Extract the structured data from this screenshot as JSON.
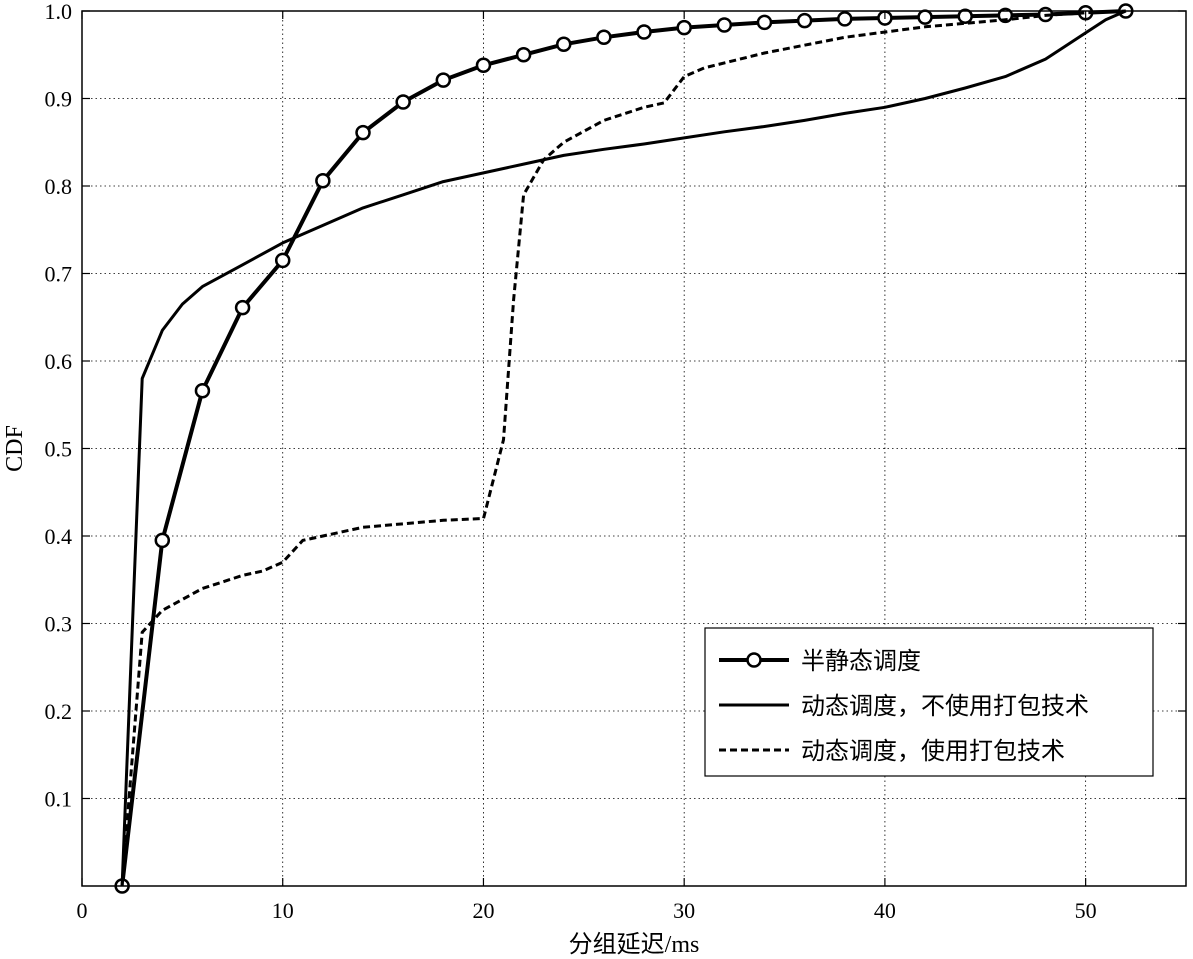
{
  "chart_data": {
    "type": "line",
    "title": "",
    "xlabel": "分组延迟/ms",
    "ylabel": "CDF",
    "xlim": [
      0,
      55
    ],
    "ylim": [
      0,
      1.0
    ],
    "xticks": [
      0,
      10,
      20,
      30,
      40,
      50
    ],
    "yticks": [
      0.1,
      0.2,
      0.3,
      0.4,
      0.5,
      0.6,
      0.7,
      0.8,
      0.9,
      1.0
    ],
    "xtick_labels": [
      "0",
      "10",
      "20",
      "30",
      "40",
      "50"
    ],
    "ytick_labels": [
      "0.1",
      "0.2",
      "0.3",
      "0.4",
      "0.5",
      "0.6",
      "0.7",
      "0.8",
      "0.9",
      "1.0"
    ],
    "grid": true,
    "legend_position": "bottom-right",
    "series": [
      {
        "name": "半静态调度",
        "style": "solid-circle-markers",
        "color": "#000000",
        "x": [
          2,
          4,
          6,
          8,
          10,
          12,
          14,
          16,
          18,
          20,
          22,
          24,
          26,
          28,
          30,
          32,
          34,
          36,
          38,
          40,
          42,
          44,
          46,
          48,
          50,
          52
        ],
        "y": [
          0.0,
          0.395,
          0.566,
          0.661,
          0.715,
          0.806,
          0.861,
          0.896,
          0.921,
          0.938,
          0.95,
          0.962,
          0.97,
          0.976,
          0.981,
          0.984,
          0.987,
          0.989,
          0.991,
          0.992,
          0.993,
          0.994,
          0.995,
          0.996,
          0.998,
          1.0
        ]
      },
      {
        "name": "动态调度，不使用打包技术",
        "style": "solid",
        "color": "#000000",
        "x": [
          2,
          3,
          4,
          5,
          6,
          8,
          10,
          12,
          14,
          16,
          18,
          20,
          22,
          24,
          26,
          28,
          30,
          32,
          34,
          36,
          38,
          40,
          42,
          44,
          46,
          48,
          49,
          50,
          51,
          52
        ],
        "y": [
          0.0,
          0.58,
          0.635,
          0.665,
          0.685,
          0.71,
          0.735,
          0.755,
          0.775,
          0.79,
          0.805,
          0.815,
          0.825,
          0.835,
          0.842,
          0.848,
          0.855,
          0.862,
          0.868,
          0.875,
          0.883,
          0.89,
          0.9,
          0.912,
          0.925,
          0.945,
          0.96,
          0.975,
          0.99,
          1.0
        ]
      },
      {
        "name": "动态调度，使用打包技术",
        "style": "dashed",
        "color": "#000000",
        "x": [
          2,
          3,
          4,
          6,
          8,
          9,
          10,
          11,
          14,
          18,
          20,
          21,
          21.5,
          22,
          23,
          24,
          26,
          28,
          29,
          30,
          31,
          34,
          38,
          42,
          46,
          48,
          50,
          52
        ],
        "y": [
          0.0,
          0.29,
          0.315,
          0.34,
          0.355,
          0.36,
          0.37,
          0.395,
          0.41,
          0.418,
          0.42,
          0.51,
          0.67,
          0.79,
          0.83,
          0.85,
          0.875,
          0.89,
          0.895,
          0.925,
          0.935,
          0.952,
          0.97,
          0.982,
          0.99,
          0.995,
          0.998,
          1.0
        ]
      }
    ]
  },
  "legend": {
    "entries": [
      "半静态调度",
      "动态调度，不使用打包技术",
      "动态调度，使用打包技术"
    ]
  }
}
